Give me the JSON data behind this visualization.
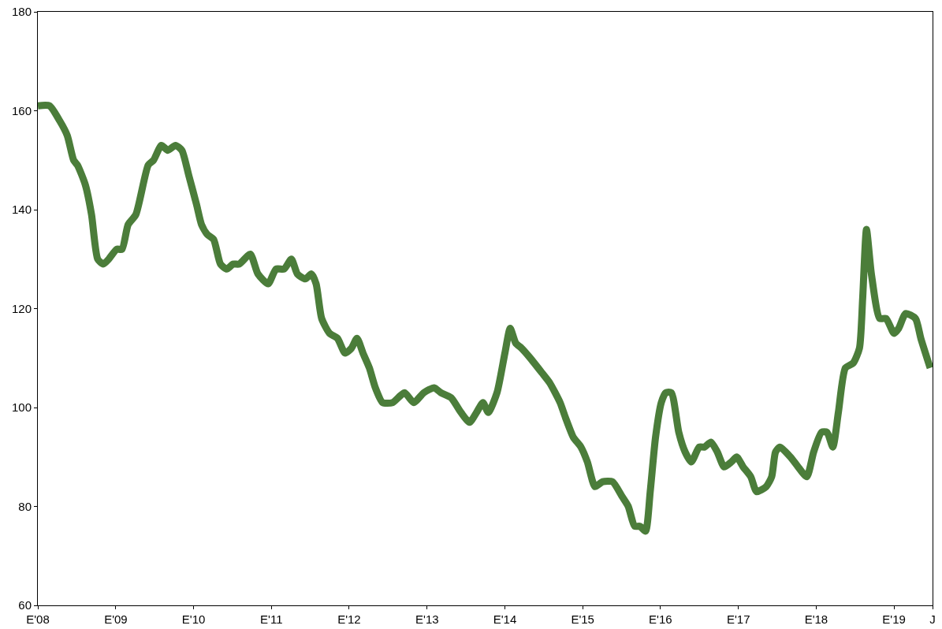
{
  "chart_data": {
    "type": "line",
    "xlim": [
      "2008-01-01",
      "2019-07-01"
    ],
    "ylim": [
      60,
      180
    ],
    "xticks": [
      {
        "value": "2008-01",
        "label": "E'08"
      },
      {
        "value": "2009-01",
        "label": "E'09"
      },
      {
        "value": "2010-01",
        "label": "E'10"
      },
      {
        "value": "2011-01",
        "label": "E'11"
      },
      {
        "value": "2012-01",
        "label": "E'12"
      },
      {
        "value": "2013-01",
        "label": "E'13"
      },
      {
        "value": "2014-01",
        "label": "E'14"
      },
      {
        "value": "2015-01",
        "label": "E'15"
      },
      {
        "value": "2016-01",
        "label": "E'16"
      },
      {
        "value": "2017-01",
        "label": "E'17"
      },
      {
        "value": "2018-01",
        "label": "E'18"
      },
      {
        "value": "2019-01",
        "label": "E'19"
      },
      {
        "value": "2019-07",
        "label": "J"
      }
    ],
    "yticks": [
      60,
      80,
      100,
      120,
      140,
      160,
      180
    ],
    "grid": false,
    "marker": "none",
    "line_style": "solid",
    "x": [
      "2008-01-01",
      "2008-02-25",
      "2008-04-12",
      "2008-05-18",
      "2008-06-17",
      "2008-07-05",
      "2008-08-11",
      "2008-09-09",
      "2008-10-08",
      "2008-11-03",
      "2008-11-29",
      "2009-01-05",
      "2009-01-30",
      "2009-02-28",
      "2009-04-05",
      "2009-06-02",
      "2009-06-27",
      "2009-08-03",
      "2009-09-02",
      "2009-10-08",
      "2009-11-07",
      "2009-12-09",
      "2010-01-15",
      "2010-02-07",
      "2010-03-06",
      "2010-04-05",
      "2010-05-07",
      "2010-06-06",
      "2010-07-05",
      "2010-08-03",
      "2010-09-24",
      "2010-10-30",
      "2010-12-17",
      "2011-01-23",
      "2011-03-02",
      "2011-04-05",
      "2011-05-03",
      "2011-06-09",
      "2011-07-08",
      "2011-07-30",
      "2011-08-25",
      "2011-10-01",
      "2011-11-07",
      "2011-12-13",
      "2012-01-12",
      "2012-02-07",
      "2012-03-06",
      "2012-04-05",
      "2012-05-03",
      "2012-06-06",
      "2012-07-23",
      "2012-09-17",
      "2012-10-30",
      "2012-12-17",
      "2013-02-03",
      "2013-03-06",
      "2013-04-23",
      "2013-06-09",
      "2013-07-19",
      "2013-08-21",
      "2013-09-20",
      "2013-10-15",
      "2013-11-25",
      "2014-01-01",
      "2014-01-26",
      "2014-02-21",
      "2014-03-20",
      "2014-04-30",
      "2014-06-24",
      "2014-07-30",
      "2014-09-17",
      "2014-10-12",
      "2014-11-18",
      "2014-12-24",
      "2015-01-23",
      "2015-02-28",
      "2015-04-05",
      "2015-05-21",
      "2015-07-05",
      "2015-08-03",
      "2015-09-02",
      "2015-09-27",
      "2015-10-23",
      "2015-11-14",
      "2015-12-09",
      "2016-01-05",
      "2016-01-26",
      "2016-02-21",
      "2016-03-27",
      "2016-04-26",
      "2016-05-25",
      "2016-07-01",
      "2016-07-26",
      "2016-08-25",
      "2016-09-24",
      "2016-10-26",
      "2016-11-29",
      "2016-12-24",
      "2017-01-23",
      "2017-02-28",
      "2017-03-27",
      "2017-05-11",
      "2017-06-06",
      "2017-06-24",
      "2017-07-15",
      "2017-09-02",
      "2017-10-08",
      "2017-11-18",
      "2017-12-20",
      "2018-01-26",
      "2018-02-21",
      "2018-03-20",
      "2018-04-15",
      "2018-05-18",
      "2018-06-24",
      "2018-07-23",
      "2018-08-07",
      "2018-08-25",
      "2018-09-17",
      "2018-10-26",
      "2018-11-25",
      "2019-01-01",
      "2019-01-23",
      "2019-02-25",
      "2019-04-12",
      "2019-05-07",
      "2019-06-20"
    ],
    "series": [
      {
        "color": "#4b7d3a",
        "values": [
          161,
          161,
          158,
          155,
          150,
          149,
          145,
          139,
          130,
          129,
          130,
          132,
          132,
          137,
          139,
          149,
          150,
          153,
          152,
          153,
          152,
          147,
          141,
          137,
          135,
          134,
          129,
          128,
          129,
          129,
          131,
          127,
          125,
          128,
          128,
          130,
          127,
          126,
          127,
          125,
          118,
          115,
          114,
          111,
          112,
          114,
          111,
          108,
          104,
          101,
          101,
          103,
          101,
          103,
          104,
          103,
          102,
          99,
          97,
          99,
          101,
          99,
          103,
          111,
          116,
          113,
          112,
          110,
          107,
          105,
          101,
          98,
          94,
          92,
          89,
          84,
          85,
          85,
          82,
          80,
          76,
          76,
          75,
          83,
          94,
          101,
          103,
          103,
          95,
          91,
          89,
          92,
          92,
          93,
          91,
          88,
          89,
          90,
          88,
          86,
          83,
          84,
          86,
          91,
          92,
          90,
          88,
          86,
          91,
          95,
          95,
          92,
          99,
          108,
          109,
          112,
          122,
          136,
          127,
          118,
          118,
          115,
          116,
          119,
          118,
          114,
          108
        ]
      }
    ]
  }
}
